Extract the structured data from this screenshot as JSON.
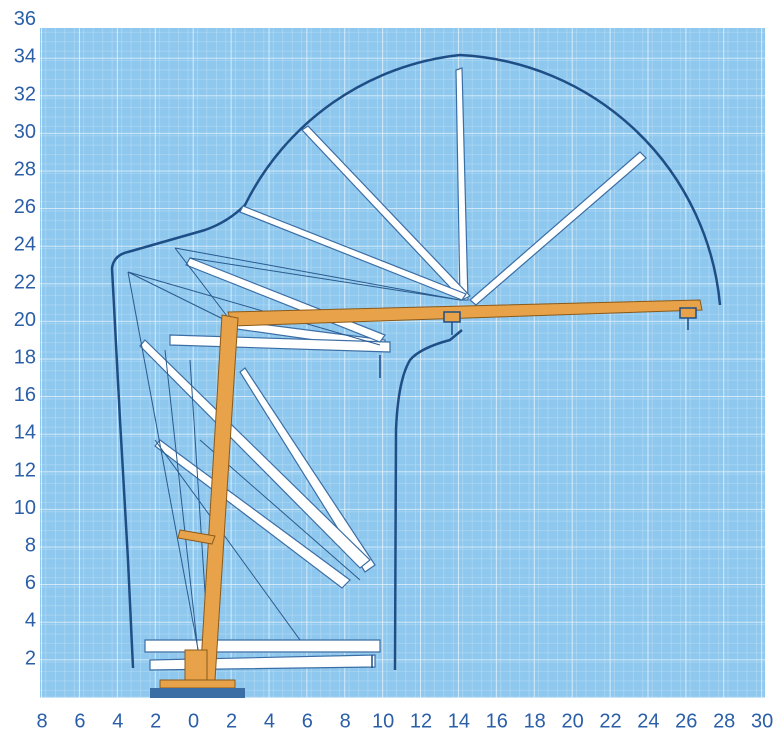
{
  "y_axis_labels": [
    "2",
    "4",
    "6",
    "8",
    "10",
    "12",
    "14",
    "16",
    "18",
    "20",
    "22",
    "24",
    "26",
    "28",
    "30",
    "32",
    "34",
    "36"
  ],
  "x_axis_labels": [
    "8",
    "6",
    "4",
    "2",
    "0",
    "2",
    "4",
    "6",
    "8",
    "10",
    "12",
    "14",
    "16",
    "18",
    "20",
    "22",
    "24",
    "26",
    "28",
    "30"
  ]
}
